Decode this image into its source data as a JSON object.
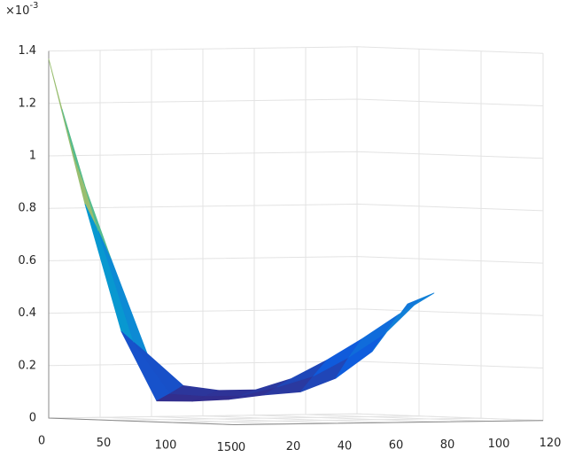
{
  "chart_data": {
    "type": "surface",
    "z_multiplier": "×10",
    "z_exponent": "-3",
    "x": [
      [
        0,
        29.3,
        58.6,
        87.1,
        100,
        100,
        100,
        100,
        100,
        100,
        100
      ],
      [
        10.7,
        40,
        68.6,
        97.9,
        100,
        100,
        100,
        100,
        100,
        100,
        100
      ],
      [
        21.4,
        50.7,
        79.3,
        100,
        100,
        100,
        100,
        100,
        100,
        100,
        100
      ]
    ],
    "y": [
      [
        0,
        0,
        0,
        0,
        7.6,
        21.7,
        35.5,
        49.7,
        63.4,
        77.6,
        91.4
      ],
      [
        0,
        0,
        0,
        0,
        12.8,
        26.9,
        40.7,
        54.8,
        68.6,
        82.8,
        96.6
      ],
      [
        0,
        0,
        0,
        4.1,
        17.9,
        32.1,
        45.9,
        60,
        73.8,
        87.9,
        101.7
      ]
    ],
    "z": [
      [
        1.37,
        0.82,
        0.34,
        0.08,
        0.08,
        0.085,
        0.1,
        0.11,
        0.16,
        0.26,
        0.44
      ],
      [
        1.18,
        0.72,
        0.3,
        0.11,
        0.1,
        0.1,
        0.13,
        0.17,
        0.24,
        0.33,
        0.46
      ],
      [
        0.99,
        0.61,
        0.26,
        0.14,
        0.12,
        0.12,
        0.16,
        0.23,
        0.31,
        0.4,
        0.48
      ]
    ],
    "xlim": [
      0,
      150
    ],
    "ylim": [
      0,
      120
    ],
    "zlim": [
      0,
      1.4
    ],
    "xticks": [
      0,
      50,
      100,
      150
    ],
    "yticks": [
      0,
      20,
      40,
      60,
      80,
      100,
      120
    ],
    "zticks": [
      0,
      0.2,
      0.4,
      0.6,
      0.8,
      1,
      1.2,
      1.4
    ],
    "grid": true,
    "colormap": "parula"
  }
}
